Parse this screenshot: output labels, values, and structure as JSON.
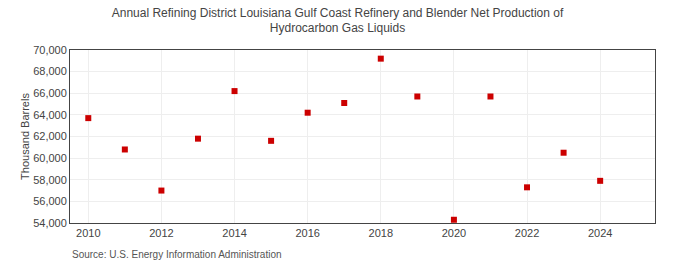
{
  "chart_data": {
    "type": "scatter",
    "title": "Annual Refining District Louisiana Gulf Coast Refinery and Blender Net Production of\nHydrocarbon Gas Liquids",
    "ylabel": "Thousand Barrels",
    "annotations": [
      "Source: U.S. Energy Information Administration"
    ],
    "x": [
      2010,
      2011,
      2012,
      2013,
      2014,
      2015,
      2016,
      2017,
      2018,
      2019,
      2020,
      2021,
      2022,
      2023,
      2024
    ],
    "values": [
      63700,
      60800,
      57000,
      61800,
      66200,
      61600,
      64200,
      65100,
      69200,
      65700,
      54300,
      65700,
      57300,
      60500,
      57900
    ],
    "color": "#cc0000",
    "marker": "square",
    "xlim": [
      2009.5,
      2025.5
    ],
    "xticks": [
      2010,
      2012,
      2014,
      2016,
      2018,
      2020,
      2022,
      2024
    ],
    "ylim": [
      54000,
      70000
    ],
    "yticks": [
      {
        "value": 54000,
        "label": "54,000"
      },
      {
        "value": 56000,
        "label": "56,000"
      },
      {
        "value": 58000,
        "label": "58,000"
      },
      {
        "value": 60000,
        "label": "60,000"
      },
      {
        "value": 62000,
        "label": "62,000"
      },
      {
        "value": 64000,
        "label": "64,000"
      },
      {
        "value": 66000,
        "label": "66,000"
      },
      {
        "value": 68000,
        "label": "68,000"
      },
      {
        "value": 70000,
        "label": "70,000"
      }
    ],
    "grid": true
  }
}
